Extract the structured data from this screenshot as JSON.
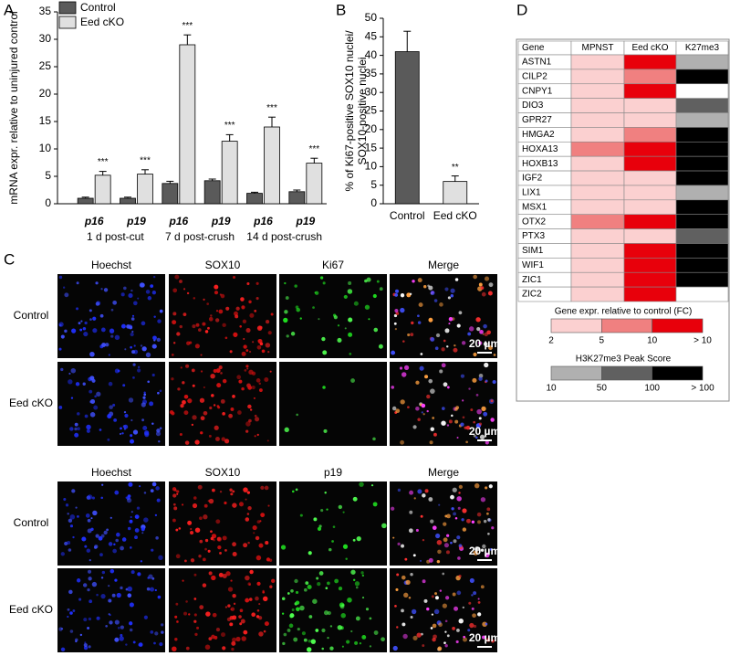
{
  "panel_labels": [
    "A",
    "B",
    "C",
    "D"
  ],
  "chart_data": [
    {
      "type": "bar",
      "y_label": "mRNA expr. relative to uninjured control",
      "categories": [
        "p16",
        "p19",
        "p16",
        "p19",
        "p16",
        "p19"
      ],
      "groups": [
        "1 d post-cut",
        "7 d post-crush",
        "14 d post-crush"
      ],
      "series": [
        {
          "name": "Control",
          "color": "#5a5a5a",
          "values": [
            1.0,
            1.0,
            3.7,
            4.2,
            1.9,
            2.2
          ],
          "errors": [
            0.2,
            0.2,
            0.4,
            0.3,
            0.2,
            0.3
          ]
        },
        {
          "name": "Eed cKO",
          "color": "#e0e0e0",
          "values": [
            5.2,
            5.4,
            29,
            11.4,
            14,
            7.4
          ],
          "errors": [
            0.7,
            0.8,
            1.8,
            1.2,
            1.8,
            0.9
          ]
        }
      ],
      "significance": [
        "***",
        "***",
        "***",
        "***",
        "***",
        "***"
      ],
      "ylim": [
        0,
        35
      ],
      "yticks": [
        0,
        5,
        10,
        15,
        20,
        25,
        30,
        35
      ]
    },
    {
      "type": "bar",
      "y_label": [
        "% of Ki67-positive SOX10 nuclei/",
        "SOX10-positive nuclei"
      ],
      "categories": [
        "Control",
        "Eed cKO"
      ],
      "colors": [
        "#5a5a5a",
        "#e0e0e0"
      ],
      "values": [
        41,
        6
      ],
      "errors": [
        5.5,
        1.5
      ],
      "significance": [
        null,
        "**"
      ],
      "ylim": [
        0,
        50
      ],
      "yticks": [
        0,
        5,
        10,
        15,
        20,
        25,
        30,
        35,
        40,
        45,
        50
      ]
    }
  ],
  "microscopy": {
    "blocks": [
      {
        "columns": [
          "Hoechst",
          "SOX10",
          "Ki67",
          "Merge"
        ],
        "rows": [
          "Control",
          "Eed cKO"
        ],
        "scale_bar": "20 µm"
      },
      {
        "columns": [
          "Hoechst",
          "SOX10",
          "p19",
          "Merge"
        ],
        "rows": [
          "Control",
          "Eed cKO"
        ],
        "scale_bar": "20 µm"
      }
    ]
  },
  "heatmap": {
    "columns": [
      "Gene",
      "MPNST",
      "Eed cKO",
      "K27me3"
    ],
    "rows": [
      {
        "gene": "ASTN1",
        "colors": [
          "#fbd0d0",
          "#e8000b",
          "#b0b0b0"
        ]
      },
      {
        "gene": "CILP2",
        "colors": [
          "#fbd0d0",
          "#f08080",
          "#000000"
        ]
      },
      {
        "gene": "CNPY1",
        "colors": [
          "#fbd0d0",
          "#e8000b",
          "#ffffff"
        ]
      },
      {
        "gene": "DIO3",
        "colors": [
          "#fbd0d0",
          "#fbd0d0",
          "#606060"
        ]
      },
      {
        "gene": "GPR27",
        "colors": [
          "#fbd0d0",
          "#fbd0d0",
          "#b0b0b0"
        ]
      },
      {
        "gene": "HMGA2",
        "colors": [
          "#fbd0d0",
          "#f08080",
          "#000000"
        ]
      },
      {
        "gene": "HOXA13",
        "colors": [
          "#f08080",
          "#e8000b",
          "#000000"
        ]
      },
      {
        "gene": "HOXB13",
        "colors": [
          "#fbd0d0",
          "#e8000b",
          "#000000"
        ]
      },
      {
        "gene": "IGF2",
        "colors": [
          "#fbd0d0",
          "#fbd0d0",
          "#000000"
        ]
      },
      {
        "gene": "LIX1",
        "colors": [
          "#fbd0d0",
          "#fbd0d0",
          "#b0b0b0"
        ]
      },
      {
        "gene": "MSX1",
        "colors": [
          "#fbd0d0",
          "#fbd0d0",
          "#000000"
        ]
      },
      {
        "gene": "OTX2",
        "colors": [
          "#f08080",
          "#e8000b",
          "#000000"
        ]
      },
      {
        "gene": "PTX3",
        "colors": [
          "#fbd0d0",
          "#fbd0d0",
          "#606060"
        ]
      },
      {
        "gene": "SIM1",
        "colors": [
          "#fbd0d0",
          "#e8000b",
          "#000000"
        ]
      },
      {
        "gene": "WIF1",
        "colors": [
          "#fbd0d0",
          "#e8000b",
          "#000000"
        ]
      },
      {
        "gene": "ZIC1",
        "colors": [
          "#fbd0d0",
          "#e8000b",
          "#000000"
        ]
      },
      {
        "gene": "ZIC2",
        "colors": [
          "#fbd0d0",
          "#e8000b",
          "#ffffff"
        ]
      }
    ],
    "legends": [
      {
        "title": "Gene expr. relative to control (FC)",
        "colors": [
          "#fbd0d0",
          "#f08080",
          "#e8000b"
        ],
        "ticks": [
          "2",
          "5",
          "10",
          "> 10"
        ]
      },
      {
        "title": "H3K27me3  Peak Score",
        "colors": [
          "#b0b0b0",
          "#606060",
          "#000000"
        ],
        "ticks": [
          "10",
          "50",
          "100",
          "> 100"
        ]
      }
    ]
  }
}
